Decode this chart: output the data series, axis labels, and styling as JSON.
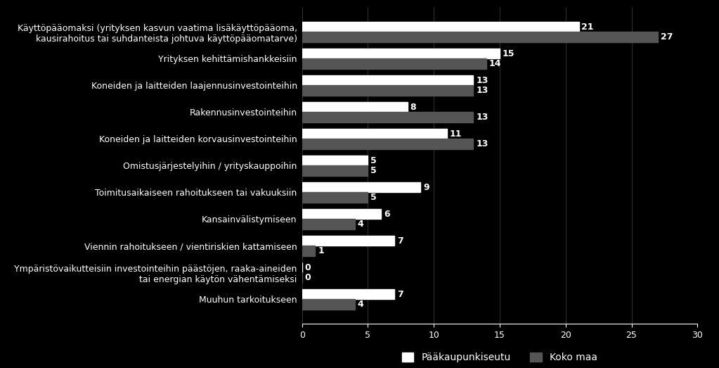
{
  "categories": [
    "Muuhun tarkoitukseen",
    "Ympäristövaikutteisiin investointeihin päästöjen, raaka-aineiden\ntai energian käytön vähentämiseksi",
    "Viennin rahoitukseen / vientiriskien kattamiseen",
    "Kansainvälistymiseen",
    "Toimitusaikaiseen rahoitukseen tai vakuuksiin",
    "Omistusjärjestelyihin / yrityskauppoihin",
    "Koneiden ja laitteiden korvausinvestointeihin",
    "Rakennusinvestointeihin",
    "Koneiden ja laitteiden laajennusinvestointeihin",
    "Yrityksen kehittämishankkeisiin",
    "Käyttöpääomaksi (yrityksen kasvun vaatima lisäkäyttöpääoma,\nkausirahoitus tai suhdanteista johtuva käyttöpääomatarve)"
  ],
  "paakaupunkiseutu": [
    7,
    0,
    7,
    6,
    9,
    5,
    11,
    8,
    13,
    15,
    21
  ],
  "koko_maa": [
    4,
    0,
    1,
    4,
    5,
    5,
    13,
    13,
    13,
    14,
    27
  ],
  "bar_color_paa": "#ffffff",
  "bar_color_koko": "#555555",
  "background_color": "#000000",
  "text_color": "#ffffff",
  "xlim": [
    0,
    30
  ],
  "xticks": [
    0,
    5,
    10,
    15,
    20,
    25,
    30
  ],
  "legend_paa": "Pääkaupunkiseutu",
  "legend_koko": "Koko maa",
  "bar_height": 0.38,
  "label_fontsize": 9,
  "tick_fontsize": 9,
  "legend_fontsize": 10
}
